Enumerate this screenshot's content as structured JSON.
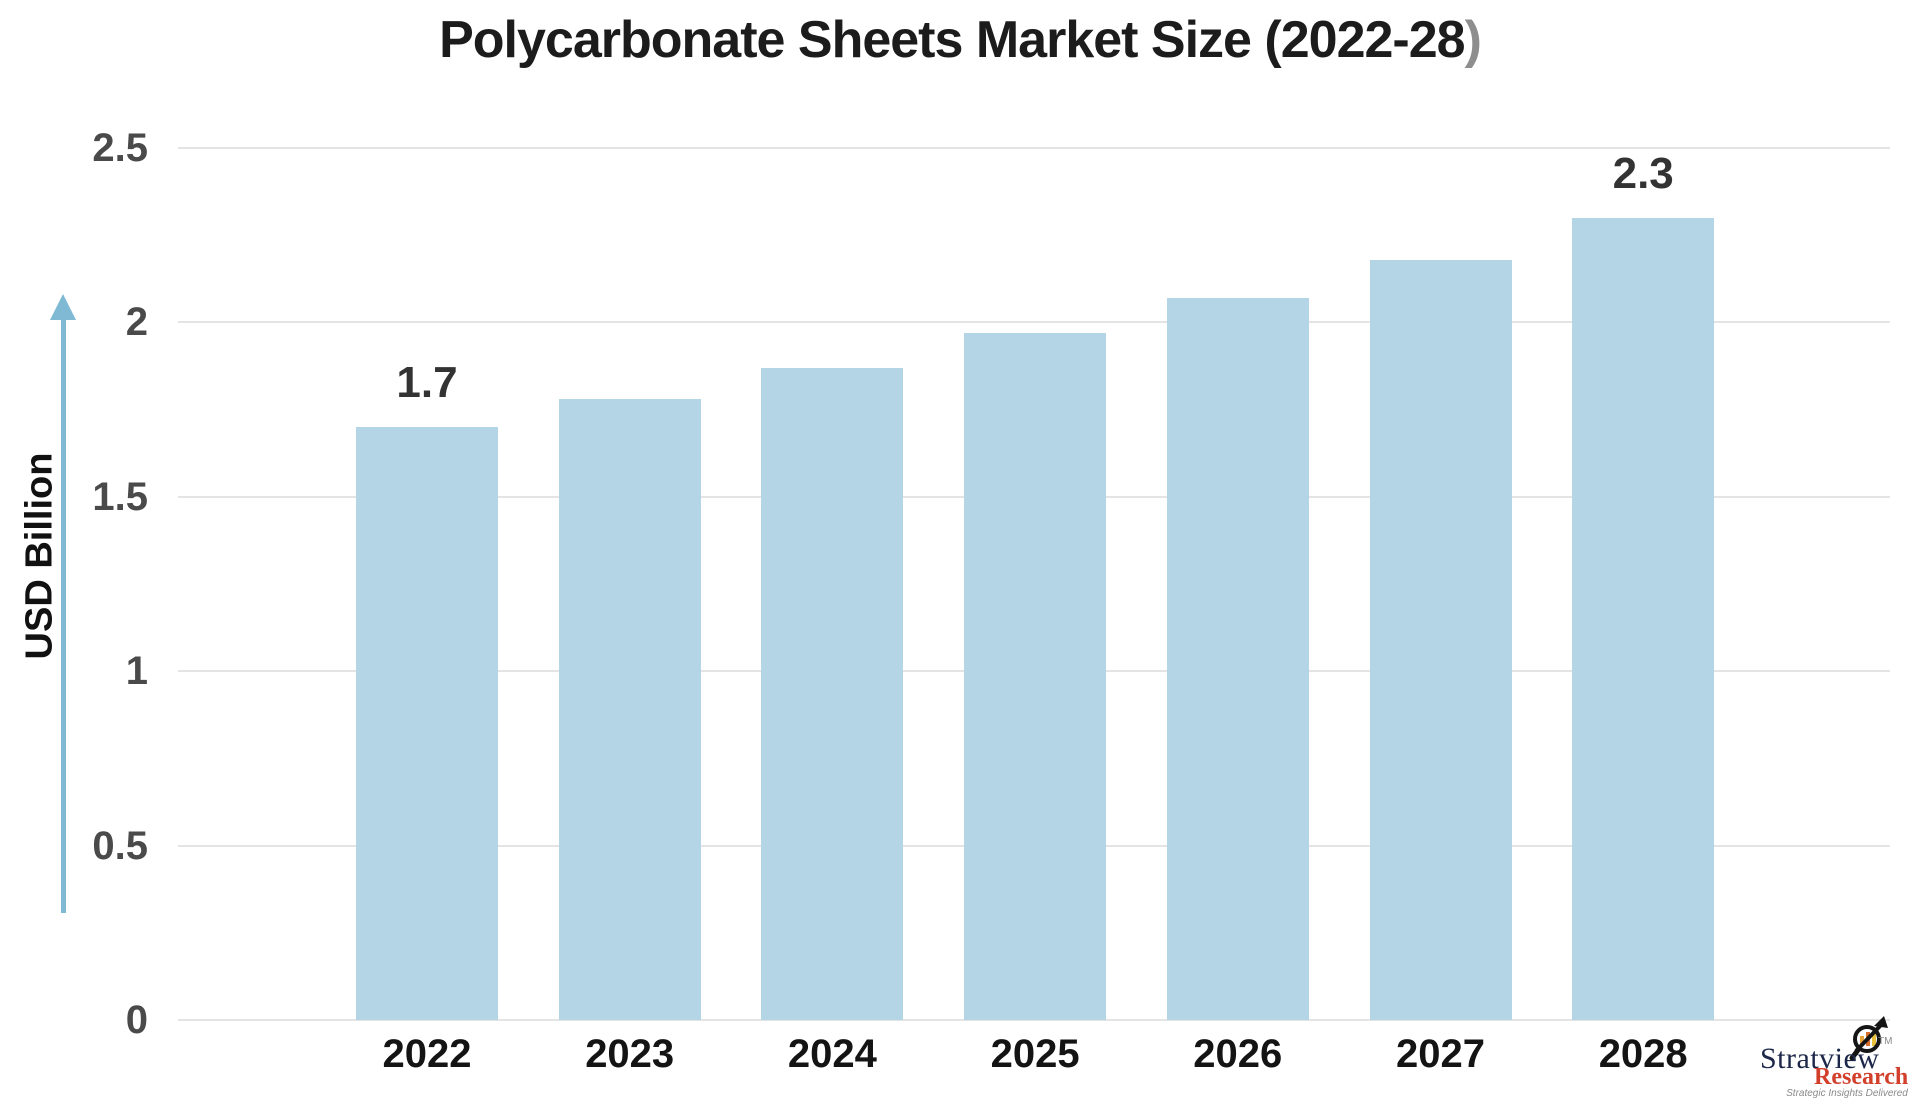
{
  "title": {
    "main": "Polycarbonate Sheets Market Size (2022-28",
    "paren": ")"
  },
  "chart_data": {
    "type": "bar",
    "title": "Polycarbonate Sheets Market Size (2022-28)",
    "categories": [
      "2022",
      "2023",
      "2024",
      "2025",
      "2026",
      "2027",
      "2028"
    ],
    "values": [
      1.7,
      1.78,
      1.87,
      1.97,
      2.07,
      2.18,
      2.3
    ],
    "value_labels": [
      "1.7",
      "",
      "",
      "",
      "",
      "",
      "2.3"
    ],
    "xlabel": "",
    "ylabel": "USD Billion",
    "yticks": [
      0,
      0.5,
      1,
      1.5,
      2,
      2.5
    ],
    "ytick_labels": [
      "0",
      "0.5",
      "1",
      "1.5",
      "2",
      "2.5"
    ],
    "ylim": [
      0,
      2.5
    ],
    "grid": true,
    "legend": "none",
    "bar_color": "#b3d5e6"
  },
  "colors": {
    "bar": "#b3d5e6",
    "axis_arrow": "#7fb9d3",
    "gridline": "#e4e4e4",
    "ytick_text": "#4a4a4a",
    "xtick_text": "#141414",
    "value_label_text": "#333333",
    "title_text": "#1c1c1c",
    "title_paren": "#8e8e8e",
    "background": "#ffffff",
    "logo_brand": "#1c2749",
    "logo_research": "#d2402c",
    "logo_tagline": "#8a8a8a"
  },
  "logo": {
    "brand": "Stratview",
    "tm": "TM",
    "sub": "Research",
    "tagline": "Strategic Insights Delivered"
  }
}
